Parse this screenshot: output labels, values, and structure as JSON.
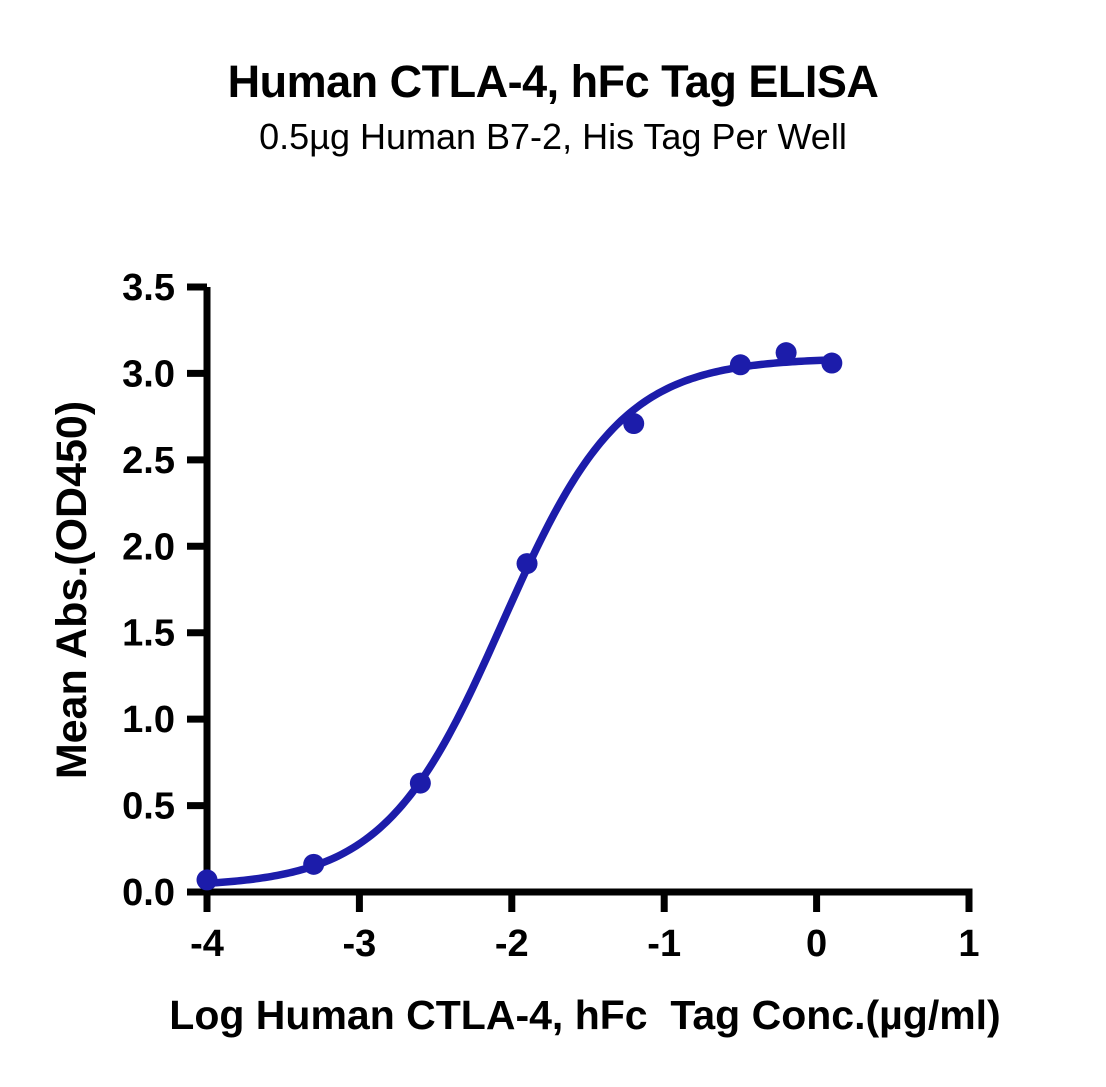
{
  "chart_data": {
    "type": "scatter",
    "title": "Human CTLA-4, hFc Tag ELISA",
    "subtitle": "0.5µg Human B7-2, His Tag Per Well",
    "xlabel": "Log Human CTLA-4, hFc  Tag Conc.(µg/ml)",
    "ylabel": "Mean Abs.(OD450)",
    "x": [
      -4.0,
      -3.3,
      -2.6,
      -1.9,
      -1.2,
      -0.5,
      -0.2,
      0.1
    ],
    "y": [
      0.07,
      0.16,
      0.63,
      1.9,
      2.71,
      3.05,
      3.12,
      3.06
    ],
    "xlim": [
      -4,
      1
    ],
    "ylim": [
      0,
      3.5
    ],
    "x_ticks": [
      -4,
      -3,
      -2,
      -1,
      0,
      1
    ],
    "y_ticks": [
      0,
      0.5,
      1,
      1.5,
      2,
      2.5,
      3,
      3.5
    ],
    "y_tick_decimals": 1,
    "grid": false,
    "legend": null,
    "marker": "circle",
    "point_color": "#1c1caa",
    "line_color": "#1c1caa",
    "axis_color": "#000000",
    "fit_curve": {
      "model": "4PL",
      "bottom": 0.03,
      "top": 3.09,
      "logEC50": -2.06,
      "hill": 1.12,
      "x_start": -4.0,
      "x_end": 0.12
    }
  }
}
